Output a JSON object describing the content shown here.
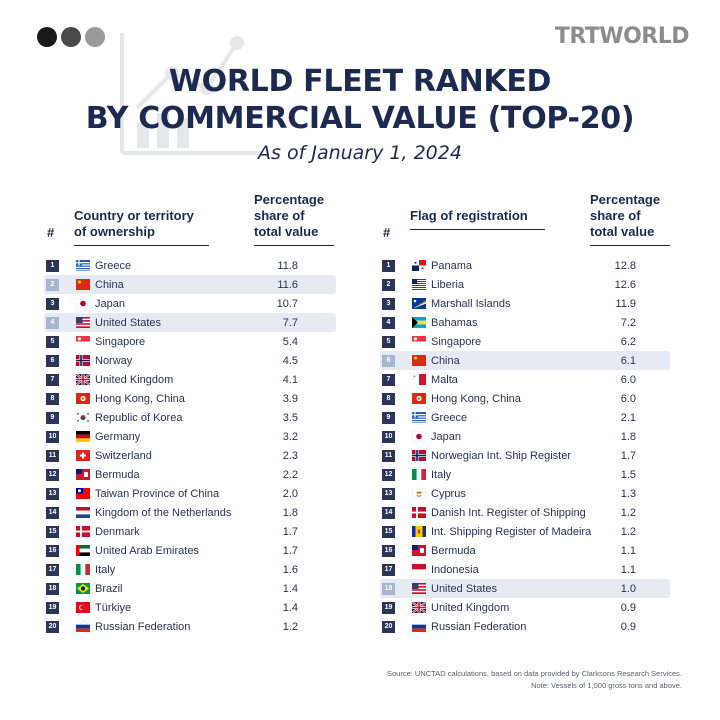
{
  "header": {
    "brand": "TRTWORLD",
    "dot_colors": [
      "#1a1a1a",
      "#4a4a4a",
      "#9a9a9a"
    ]
  },
  "chart_data": [
    {
      "type": "table",
      "title": "WORLD FLEET RANKED BY COMMERCIAL VALUE (TOP-20)",
      "subtitle": "As of January 1, 2024",
      "columns": [
        "#",
        "Country or territory of ownership",
        "Percentage share of total value"
      ],
      "rows": [
        {
          "rank": "1",
          "name": "Greece",
          "value": "11.8",
          "flag": "greece"
        },
        {
          "rank": "2",
          "name": "China",
          "value": "11.6",
          "flag": "china",
          "highlight": true
        },
        {
          "rank": "3",
          "name": "Japan",
          "value": "10.7",
          "flag": "japan"
        },
        {
          "rank": "4",
          "name": "United States",
          "value": "7.7",
          "flag": "usa",
          "highlight": true
        },
        {
          "rank": "5",
          "name": "Singapore",
          "value": "5.4",
          "flag": "singapore"
        },
        {
          "rank": "6",
          "name": "Norway",
          "value": "4.5",
          "flag": "norway"
        },
        {
          "rank": "7",
          "name": "United Kingdom",
          "value": "4.1",
          "flag": "uk"
        },
        {
          "rank": "8",
          "name": "Hong Kong, China",
          "value": "3.9",
          "flag": "hongkong"
        },
        {
          "rank": "9",
          "name": "Republic of Korea",
          "value": "3.5",
          "flag": "korea"
        },
        {
          "rank": "10",
          "name": "Germany",
          "value": "3.2",
          "flag": "germany"
        },
        {
          "rank": "11",
          "name": "Switzerland",
          "value": "2.3",
          "flag": "switzerland"
        },
        {
          "rank": "12",
          "name": "Bermuda",
          "value": "2.2",
          "flag": "bermuda"
        },
        {
          "rank": "13",
          "name": "Taiwan Province of China",
          "value": "2.0",
          "flag": "taiwan"
        },
        {
          "rank": "14",
          "name": "Kingdom of the Netherlands",
          "value": "1.8",
          "flag": "netherlands"
        },
        {
          "rank": "15",
          "name": "Denmark",
          "value": "1.7",
          "flag": "denmark"
        },
        {
          "rank": "16",
          "name": "United Arab Emirates",
          "value": "1.7",
          "flag": "uae"
        },
        {
          "rank": "17",
          "name": "Italy",
          "value": "1.6",
          "flag": "italy"
        },
        {
          "rank": "18",
          "name": "Brazil",
          "value": "1.4",
          "flag": "brazil"
        },
        {
          "rank": "19",
          "name": "Türkiye",
          "value": "1.4",
          "flag": "turkiye"
        },
        {
          "rank": "20",
          "name": "Russian Federation",
          "value": "1.2",
          "flag": "russia"
        }
      ]
    },
    {
      "type": "table",
      "columns": [
        "#",
        "Flag of registration",
        "Percentage share of total value"
      ],
      "rows": [
        {
          "rank": "1",
          "name": "Panama",
          "value": "12.8",
          "flag": "panama"
        },
        {
          "rank": "2",
          "name": "Liberia",
          "value": "12.6",
          "flag": "liberia"
        },
        {
          "rank": "3",
          "name": "Marshall Islands",
          "value": "11.9",
          "flag": "marshall"
        },
        {
          "rank": "4",
          "name": "Bahamas",
          "value": "7.2",
          "flag": "bahamas"
        },
        {
          "rank": "5",
          "name": "Singapore",
          "value": "6.2",
          "flag": "singapore"
        },
        {
          "rank": "6",
          "name": "China",
          "value": "6.1",
          "flag": "china",
          "highlight": true
        },
        {
          "rank": "7",
          "name": "Malta",
          "value": "6.0",
          "flag": "malta"
        },
        {
          "rank": "8",
          "name": "Hong Kong, China",
          "value": "6.0",
          "flag": "hongkong"
        },
        {
          "rank": "9",
          "name": "Greece",
          "value": "2.1",
          "flag": "greece"
        },
        {
          "rank": "10",
          "name": "Japan",
          "value": "1.8",
          "flag": "japan"
        },
        {
          "rank": "11",
          "name": "Norwegian Int. Ship Register",
          "value": "1.7",
          "flag": "norway"
        },
        {
          "rank": "12",
          "name": "Italy",
          "value": "1.5",
          "flag": "italy"
        },
        {
          "rank": "13",
          "name": "Cyprus",
          "value": "1.3",
          "flag": "cyprus"
        },
        {
          "rank": "14",
          "name": "Danish Int. Register of Shipping",
          "value": "1.2",
          "flag": "denmark"
        },
        {
          "rank": "15",
          "name": "Int. Shipping Register of Madeira",
          "value": "1.2",
          "flag": "madeira"
        },
        {
          "rank": "16",
          "name": "Bermuda",
          "value": "1.1",
          "flag": "bermuda"
        },
        {
          "rank": "17",
          "name": "Indonesia",
          "value": "1.1",
          "flag": "indonesia"
        },
        {
          "rank": "18",
          "name": "United States",
          "value": "1.0",
          "flag": "usa",
          "highlight": true
        },
        {
          "rank": "19",
          "name": "United Kingdom",
          "value": "0.9",
          "flag": "uk"
        },
        {
          "rank": "20",
          "name": "Russian Federation",
          "value": "0.9",
          "flag": "russia"
        }
      ]
    }
  ],
  "titles": {
    "line1": "WORLD FLEET RANKED",
    "line2": "BY COMMERCIAL VALUE (TOP-20)",
    "subtitle": "As of January 1, 2024"
  },
  "left_table": {
    "hash": "#",
    "name_header": "Country or territory of ownership",
    "value_header": "Percentage share of total value"
  },
  "right_table": {
    "hash": "#",
    "name_header": "Flag of registration",
    "value_header": "Percentage share of total value"
  },
  "footer": {
    "source": "Source: UNCTAD calculations, based on data provided by Clarksons Research Services.",
    "note": "Note: Vessels of 1,000 gross tons and above."
  }
}
